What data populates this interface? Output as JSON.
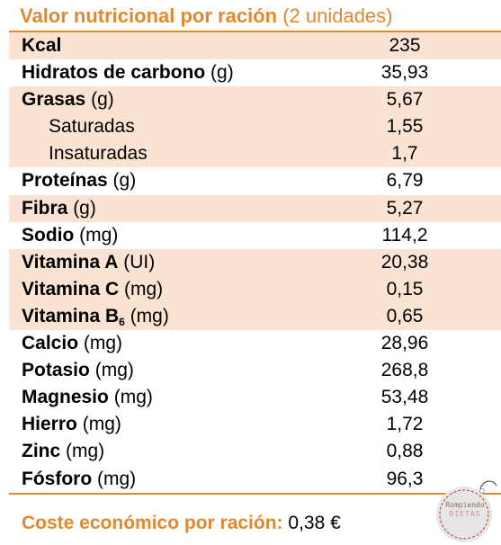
{
  "title": {
    "bold": "Valor nutricional por ración",
    "normal": "(2 unidades)"
  },
  "rows": [
    {
      "label_bold": "Kcal",
      "unit": "",
      "value": "235",
      "shaded": true,
      "indent": false
    },
    {
      "label_bold": "Hidratos de carbono",
      "unit": "(g)",
      "value": "35,93",
      "shaded": false,
      "indent": false
    },
    {
      "label_bold": "Grasas",
      "unit": "(g)",
      "value": "5,67",
      "shaded": true,
      "indent": false
    },
    {
      "label_plain": "Saturadas",
      "value": "1,55",
      "shaded": true,
      "indent": true
    },
    {
      "label_plain": "Insaturadas",
      "value": "1,7",
      "shaded": true,
      "indent": true
    },
    {
      "label_bold": "Proteínas",
      "unit": "(g)",
      "value": "6,79",
      "shaded": false,
      "indent": false
    },
    {
      "label_bold": "Fibra",
      "unit": "(g)",
      "value": "5,27",
      "shaded": true,
      "indent": false
    },
    {
      "label_bold": "Sodio",
      "unit": "(mg)",
      "value": "114,2",
      "shaded": false,
      "indent": false
    },
    {
      "label_bold": "Vitamina A",
      "unit": "(UI)",
      "value": "20,38",
      "shaded": true,
      "indent": false
    },
    {
      "label_bold": "Vitamina C",
      "unit": "(mg)",
      "value": "0,15",
      "shaded": true,
      "indent": false
    },
    {
      "label_bold": "Vitamina B",
      "sub": "6",
      "unit": "(mg)",
      "value": "0,65",
      "shaded": true,
      "indent": false
    },
    {
      "label_bold": "Calcio",
      "unit": "(mg)",
      "value": "28,96",
      "shaded": false,
      "indent": false
    },
    {
      "label_bold": "Potasio",
      "unit": "(mg)",
      "value": "268,8",
      "shaded": false,
      "indent": false
    },
    {
      "label_bold": "Magnesio",
      "unit": "(mg)",
      "value": "53,48",
      "shaded": false,
      "indent": false
    },
    {
      "label_bold": "Hierro",
      "unit": "(mg)",
      "value": "1,72",
      "shaded": false,
      "indent": false
    },
    {
      "label_bold": "Zinc",
      "unit": "(mg)",
      "value": "0,88",
      "shaded": false,
      "indent": false
    },
    {
      "label_bold": "Fósforo",
      "unit": "(mg)",
      "value": "96,3",
      "shaded": false,
      "indent": false
    }
  ],
  "cost": {
    "label": "Coste económico por ración:",
    "value": "0,38 €"
  },
  "logo": {
    "line1": "Rompiendo",
    "line2": "DIETAS"
  },
  "colors": {
    "accent": "#e0892f",
    "shade": "#fbe3d3"
  }
}
